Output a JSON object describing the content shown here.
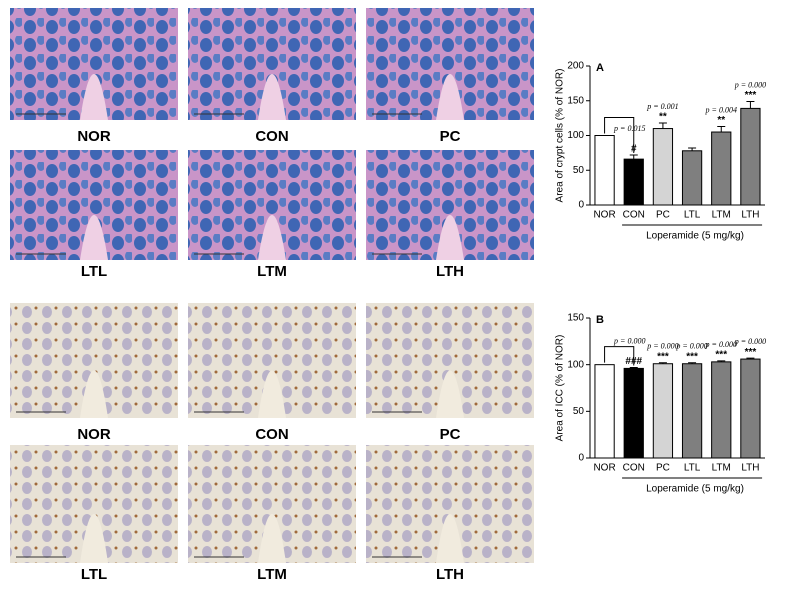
{
  "panels": [
    {
      "label": "NOR"
    },
    {
      "label": "CON"
    },
    {
      "label": "PC"
    },
    {
      "label": "LTL"
    },
    {
      "label": "LTM"
    },
    {
      "label": "LTH"
    },
    {
      "label": "NOR"
    },
    {
      "label": "CON"
    },
    {
      "label": "PC"
    },
    {
      "label": "LTL"
    },
    {
      "label": "LTM"
    },
    {
      "label": "LTH"
    }
  ],
  "chart_data": [
    {
      "type": "bar",
      "panel": "A",
      "y_label": "Area of crypt cells (% of NOR)",
      "group_label": "Loperamide (5 mg/kg)",
      "categories": [
        "NOR",
        "CON",
        "PC",
        "LTL",
        "LTM",
        "LTH"
      ],
      "values": [
        100,
        66,
        110,
        78,
        105,
        139
      ],
      "errors": [
        null,
        6,
        8,
        4,
        8,
        10
      ],
      "colors": [
        "#ffffff",
        "#000000",
        "#d4d4d4",
        "#7f7f7f",
        "#7f7f7f",
        "#7f7f7f"
      ],
      "p_labels": [
        null,
        "p = 0.015",
        "p = 0.001",
        null,
        "p = 0.004",
        "p = 0.000"
      ],
      "sig_labels": [
        null,
        "#",
        "**",
        null,
        "**",
        "***"
      ],
      "ylim": [
        0,
        200
      ],
      "yticks": [
        0,
        50,
        100,
        150,
        200
      ]
    },
    {
      "type": "bar",
      "panel": "B",
      "y_label": "Area of ICC (% of NOR)",
      "group_label": "Loperamide (5 mg/kg)",
      "categories": [
        "NOR",
        "CON",
        "PC",
        "LTL",
        "LTM",
        "LTH"
      ],
      "values": [
        100,
        96,
        101,
        101,
        103,
        106
      ],
      "errors": [
        null,
        1,
        1,
        1,
        1,
        1
      ],
      "colors": [
        "#ffffff",
        "#000000",
        "#d4d4d4",
        "#7f7f7f",
        "#7f7f7f",
        "#7f7f7f"
      ],
      "p_labels": [
        null,
        "p = 0.000",
        "p = 0.000",
        "p = 0.000",
        "p = 0.000",
        "p = 0.000"
      ],
      "sig_labels": [
        null,
        "###",
        "***",
        "***",
        "***",
        "***"
      ],
      "ylim": [
        0,
        150
      ],
      "yticks": [
        0,
        50,
        100,
        150
      ]
    }
  ]
}
